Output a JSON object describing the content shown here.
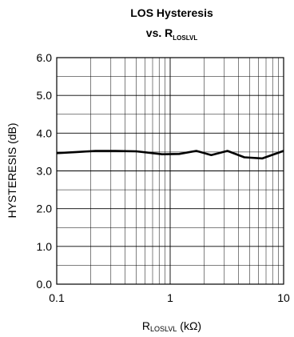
{
  "chart_data": {
    "type": "line",
    "title_line1": "LOS Hysteresis",
    "title_line2_prefix": "vs. R",
    "title_line2_sub": "LOSLVL",
    "xlabel_main": "R",
    "xlabel_sub": "LOSLVL",
    "xlabel_unit": " (kΩ)",
    "ylabel": "HYSTERESIS (dB)",
    "xscale": "log",
    "xlim": [
      0.1,
      10
    ],
    "ylim": [
      0,
      6
    ],
    "x_ticks": [
      0.1,
      1,
      10
    ],
    "x_tick_labels": [
      "0.1",
      "1",
      "10"
    ],
    "y_ticks": [
      0,
      1,
      2,
      3,
      4,
      5,
      6
    ],
    "y_tick_labels": [
      "0.0",
      "1.0",
      "2.0",
      "3.0",
      "4.0",
      "5.0",
      "6.0"
    ],
    "grid": true,
    "series": [
      {
        "x": [
          0.1,
          0.15,
          0.22,
          0.33,
          0.5,
          0.7,
          0.85,
          1.2,
          1.7,
          2.3,
          3.2,
          4.5,
          6.5,
          10
        ],
        "y": [
          3.47,
          3.5,
          3.53,
          3.53,
          3.52,
          3.47,
          3.44,
          3.45,
          3.53,
          3.42,
          3.53,
          3.36,
          3.33,
          3.53
        ]
      }
    ]
  }
}
